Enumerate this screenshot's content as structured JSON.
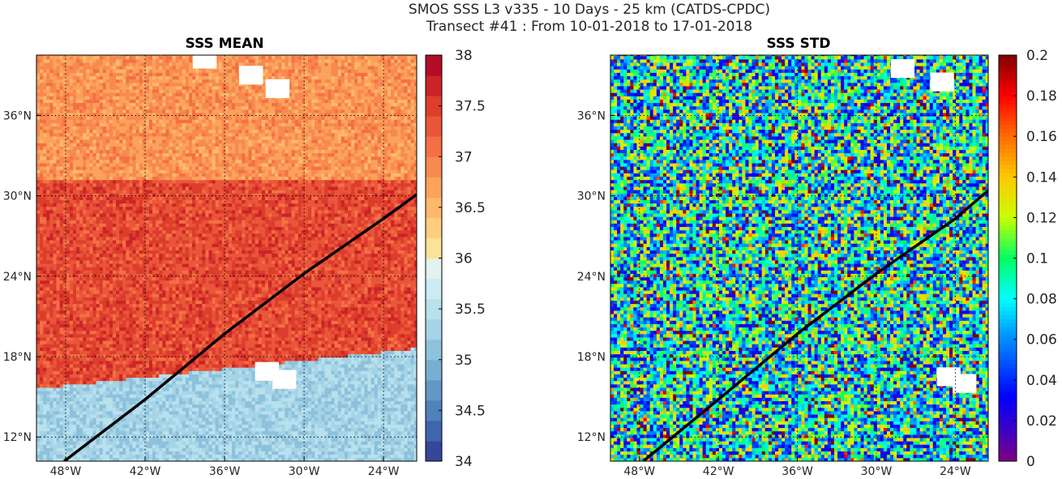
{
  "figure": {
    "title_line1": "SMOS SSS L3 v335 - 10 Days - 25 km (CATDS-CPDC)",
    "title_line2": "Transect #41 : From 10-01-2018 to 17-01-2018"
  },
  "chart_data": [
    {
      "type": "heatmap",
      "title": "SSS MEAN",
      "x_ticks": [
        {
          "value": -48,
          "label": "48°W"
        },
        {
          "value": -42,
          "label": "42°W"
        },
        {
          "value": -36,
          "label": "36°W"
        },
        {
          "value": -30,
          "label": "30°W"
        },
        {
          "value": -24,
          "label": "24°W"
        }
      ],
      "y_ticks": [
        {
          "value": 12,
          "label": "12°N"
        },
        {
          "value": 18,
          "label": "18°N"
        },
        {
          "value": 24,
          "label": "24°N"
        },
        {
          "value": 30,
          "label": "30°N"
        },
        {
          "value": 36,
          "label": "36°N"
        }
      ],
      "xlim": [
        -50.2,
        -21.5
      ],
      "ylim": [
        10.2,
        40.5
      ],
      "grid": true,
      "colorbar": {
        "range": [
          34,
          38
        ],
        "ticks": [
          {
            "value": 34,
            "label": "34"
          },
          {
            "value": 34.5,
            "label": "34.5"
          },
          {
            "value": 35,
            "label": "35"
          },
          {
            "value": 35.5,
            "label": "35.5"
          },
          {
            "value": 36,
            "label": "36"
          },
          {
            "value": 36.5,
            "label": "36.5"
          },
          {
            "value": 37,
            "label": "37"
          },
          {
            "value": 37.5,
            "label": "37.5"
          },
          {
            "value": 38,
            "label": "38"
          }
        ],
        "colormap": "RdYlBu_r",
        "levels": 20
      },
      "field_description": {
        "north_band_value": 36.8,
        "central_band_value": 37.4,
        "south_band_value": 35.3,
        "front_latitude": 15.5,
        "front_rises_east_to": 18.5
      },
      "transect": {
        "points": [
          [
            -48.1,
            10.2
          ],
          [
            -42,
            14.8
          ],
          [
            -36,
            19.7
          ],
          [
            -30,
            24.2
          ],
          [
            -24,
            28.3
          ],
          [
            -21.5,
            30.1
          ]
        ],
        "color": "#000000"
      },
      "masked_regions": [
        {
          "lon": -37.5,
          "lat": 40.2
        },
        {
          "lon": -34.0,
          "lat": 39.0
        },
        {
          "lon": -32.0,
          "lat": 38.0
        },
        {
          "lon": -32.8,
          "lat": 16.9
        },
        {
          "lon": -31.5,
          "lat": 16.3
        }
      ]
    },
    {
      "type": "heatmap",
      "title": "SSS STD",
      "x_ticks": [
        {
          "value": -48,
          "label": "48°W"
        },
        {
          "value": -42,
          "label": "42°W"
        },
        {
          "value": -36,
          "label": "36°W"
        },
        {
          "value": -30,
          "label": "30°W"
        },
        {
          "value": -24,
          "label": "24°W"
        }
      ],
      "y_ticks": [
        {
          "value": 12,
          "label": "12°N"
        },
        {
          "value": 18,
          "label": "18°N"
        },
        {
          "value": 24,
          "label": "24°N"
        },
        {
          "value": 30,
          "label": "30°N"
        },
        {
          "value": 36,
          "label": "36°N"
        }
      ],
      "xlim": [
        -50.2,
        -21.5
      ],
      "ylim": [
        10.2,
        40.5
      ],
      "grid": true,
      "colorbar": {
        "range": [
          0,
          0.2
        ],
        "ticks": [
          {
            "value": 0,
            "label": "0"
          },
          {
            "value": 0.02,
            "label": "0.02"
          },
          {
            "value": 0.04,
            "label": "0.04"
          },
          {
            "value": 0.06,
            "label": "0.06"
          },
          {
            "value": 0.08,
            "label": "0.08"
          },
          {
            "value": 0.1,
            "label": "0.1"
          },
          {
            "value": 0.12,
            "label": "0.12"
          },
          {
            "value": 0.14,
            "label": "0.14"
          },
          {
            "value": 0.16,
            "label": "0.16"
          },
          {
            "value": 0.18,
            "label": "0.18"
          },
          {
            "value": 0.2,
            "label": "0.2"
          }
        ],
        "colormap": "jet"
      },
      "field_description": {
        "typical_value": 0.08,
        "spread": 0.06
      },
      "transect": {
        "points": [
          [
            -47.7,
            10.2
          ],
          [
            -42,
            14.8
          ],
          [
            -36,
            19.7
          ],
          [
            -30,
            24.2
          ],
          [
            -24,
            28.3
          ],
          [
            -21.5,
            30.4
          ]
        ],
        "color": "#000000"
      },
      "masked_regions": [
        {
          "lon": -28.0,
          "lat": 39.5
        },
        {
          "lon": -25.0,
          "lat": 38.5
        },
        {
          "lon": -24.5,
          "lat": 16.5
        },
        {
          "lon": -23.3,
          "lat": 16.0
        }
      ]
    }
  ]
}
